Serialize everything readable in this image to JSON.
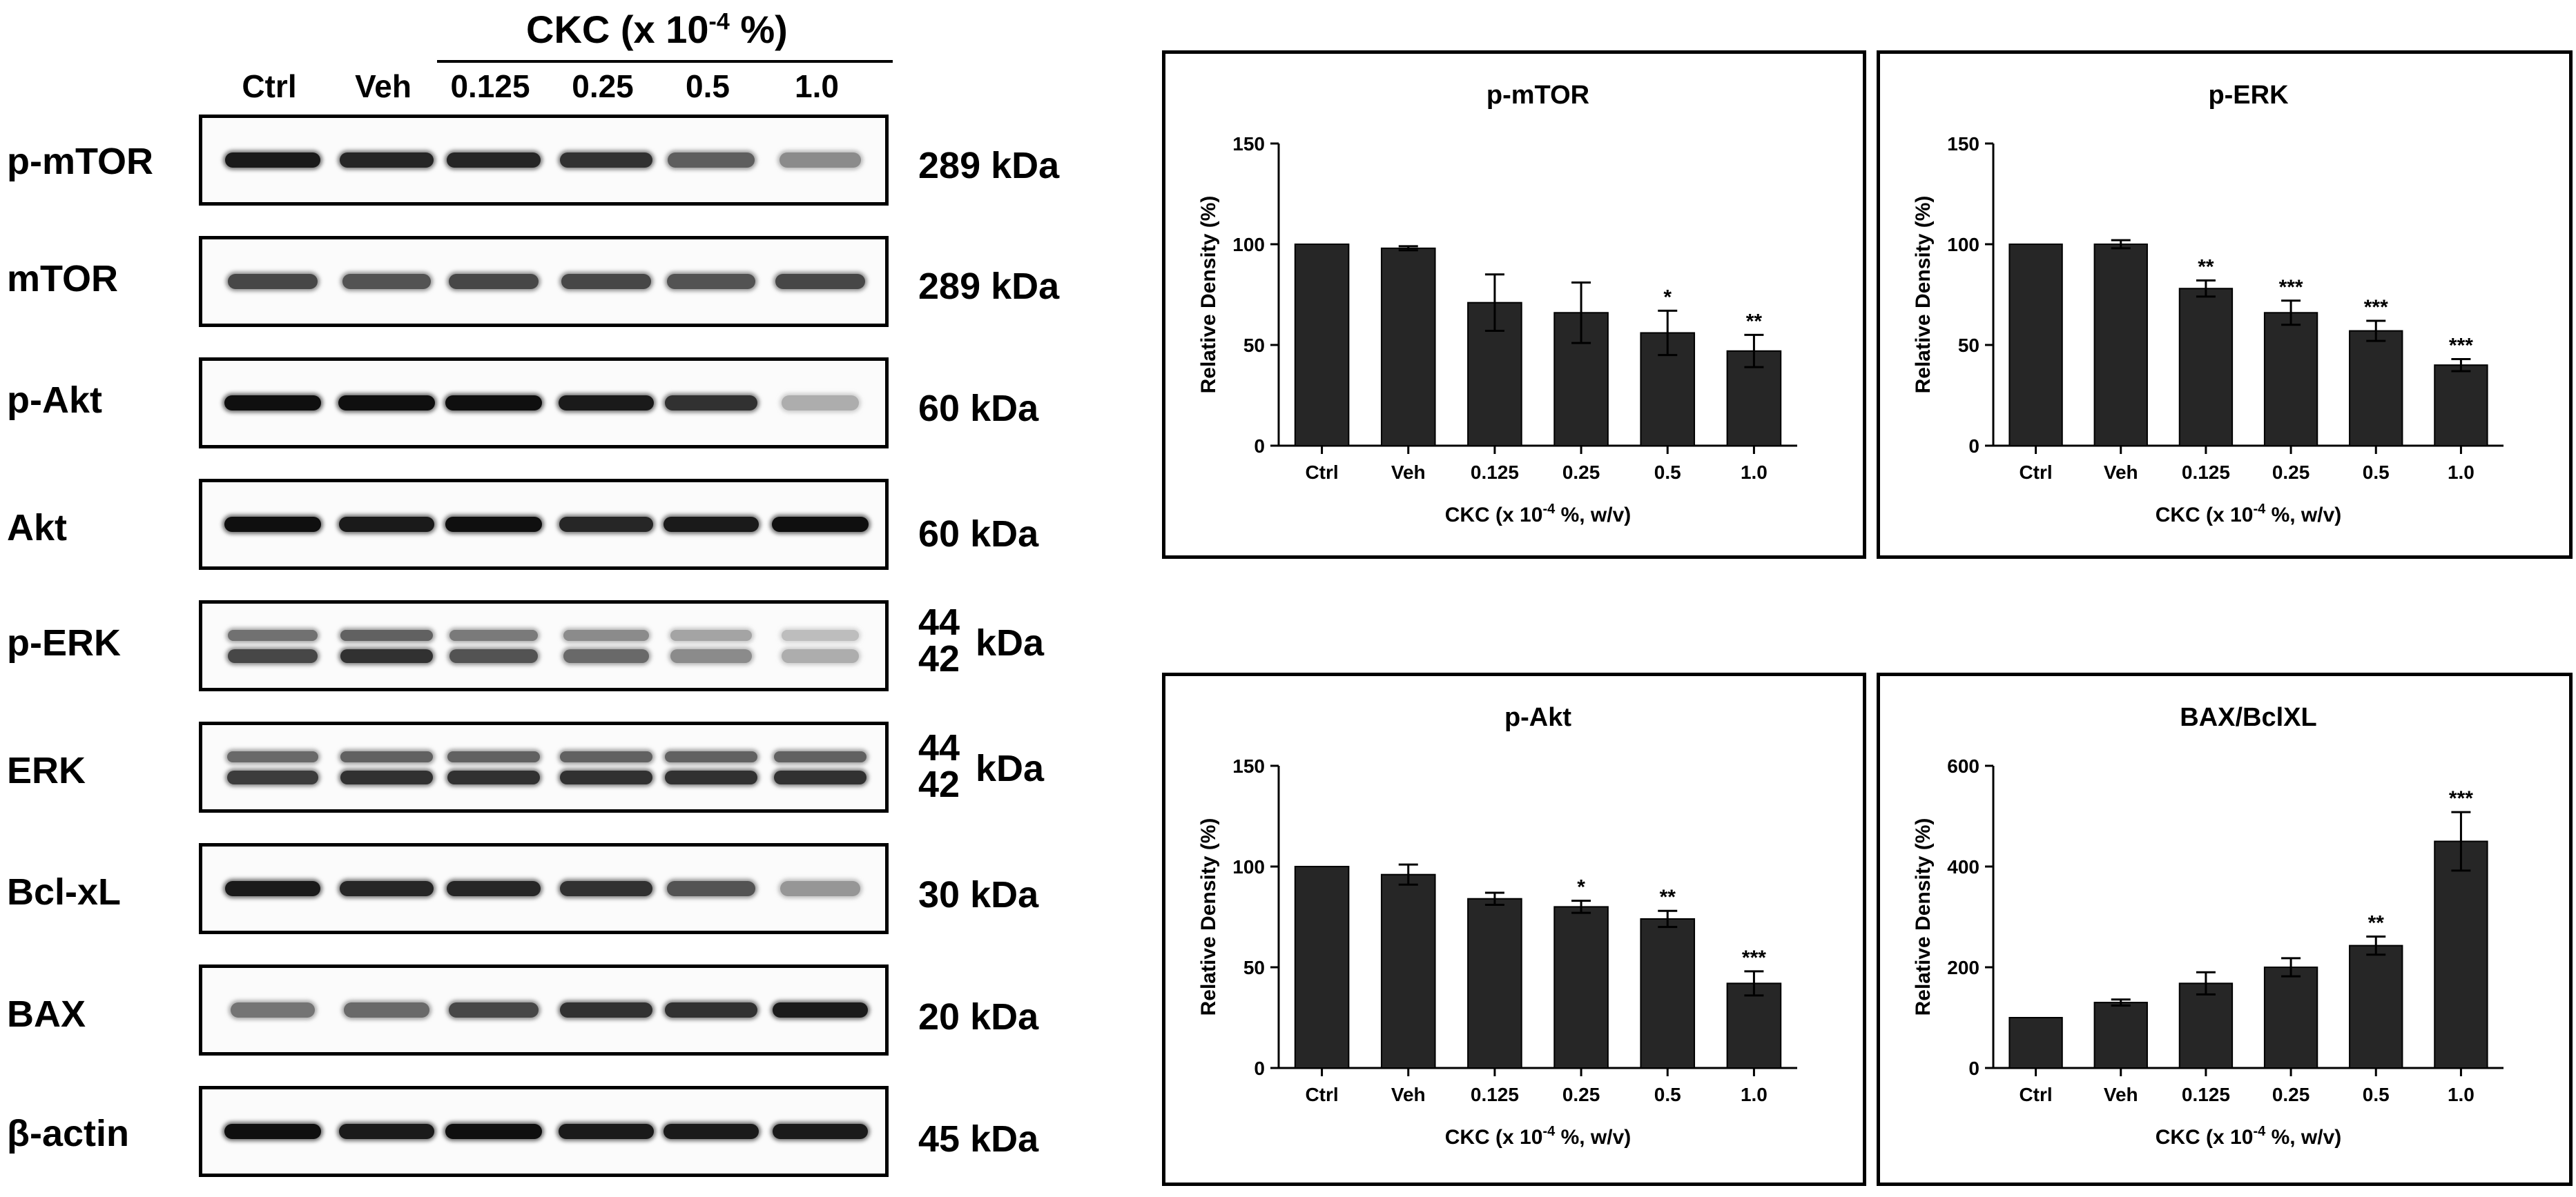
{
  "western_blot": {
    "treatment_header": "CKC (x 10",
    "treatment_exp": "-4",
    "treatment_suffix": " %)",
    "lanes": [
      "Ctrl",
      "Veh",
      "0.125",
      "0.25",
      "0.5",
      "1.0"
    ],
    "rows": [
      {
        "protein": "p-mTOR",
        "kda": "289 kDa",
        "doublet": false,
        "intensity": [
          0.95,
          0.9,
          0.9,
          0.85,
          0.65,
          0.45
        ]
      },
      {
        "protein": "mTOR",
        "kda": "289 kDa",
        "doublet": false,
        "intensity": [
          0.75,
          0.7,
          0.75,
          0.75,
          0.7,
          0.75
        ]
      },
      {
        "protein": "p-Akt",
        "kda": "60 kDa",
        "doublet": false,
        "intensity": [
          1.0,
          1.0,
          1.0,
          0.95,
          0.85,
          0.3
        ]
      },
      {
        "protein": "Akt",
        "kda": "60 kDa",
        "doublet": false,
        "intensity": [
          1.0,
          0.95,
          1.0,
          0.9,
          0.95,
          1.0
        ]
      },
      {
        "protein": "p-ERK",
        "kda_top": "44",
        "kda_bottom": "42",
        "kda_unit": "kDa",
        "doublet": true,
        "intensity": [
          0.75,
          0.85,
          0.7,
          0.6,
          0.45,
          0.3
        ]
      },
      {
        "protein": "ERK",
        "kda_top": "44",
        "kda_bottom": "42",
        "kda_unit": "kDa",
        "doublet": true,
        "intensity": [
          0.8,
          0.85,
          0.85,
          0.85,
          0.85,
          0.85
        ]
      },
      {
        "protein": "Bcl-xL",
        "kda": "30 kDa",
        "doublet": false,
        "intensity": [
          0.95,
          0.9,
          0.9,
          0.85,
          0.7,
          0.4
        ]
      },
      {
        "protein": "BAX",
        "kda": "20 kDa",
        "doublet": false,
        "intensity": [
          0.55,
          0.6,
          0.75,
          0.85,
          0.85,
          0.95
        ]
      },
      {
        "protein": "β-actin",
        "kda": "45 kDa",
        "doublet": false,
        "intensity": [
          1.0,
          0.95,
          1.0,
          0.95,
          0.95,
          0.95
        ]
      }
    ]
  },
  "chart_data": [
    {
      "type": "bar",
      "title": "p-mTOR",
      "categories": [
        "Ctrl",
        "Veh",
        "0.125",
        "0.25",
        "0.5",
        "1.0"
      ],
      "values": [
        100,
        98,
        71,
        66,
        56,
        47
      ],
      "errors": [
        0,
        1,
        14,
        15,
        11,
        8
      ],
      "significance": [
        "",
        "",
        "",
        "",
        "*",
        "**"
      ],
      "ylabel": "Relative Density (%)",
      "xlabel": "CKC (x 10",
      "xlabel_exp": "-4",
      "xlabel_suffix": " %, w/v)",
      "ylim": [
        0,
        150
      ],
      "yticks": [
        0,
        50,
        100,
        150
      ],
      "grid": false,
      "bar_color": "#262626"
    },
    {
      "type": "bar",
      "title": "p-ERK",
      "categories": [
        "Ctrl",
        "Veh",
        "0.125",
        "0.25",
        "0.5",
        "1.0"
      ],
      "values": [
        100,
        100,
        78,
        66,
        57,
        40
      ],
      "errors": [
        0,
        2,
        4,
        6,
        5,
        3
      ],
      "significance": [
        "",
        "",
        "**",
        "***",
        "***",
        "***"
      ],
      "ylabel": "Relative Density (%)",
      "xlabel": "CKC (x 10",
      "xlabel_exp": "-4",
      "xlabel_suffix": " %, w/v)",
      "ylim": [
        0,
        150
      ],
      "yticks": [
        0,
        50,
        100,
        150
      ],
      "grid": false,
      "bar_color": "#262626"
    },
    {
      "type": "bar",
      "title": "p-Akt",
      "categories": [
        "Ctrl",
        "Veh",
        "0.125",
        "0.25",
        "0.5",
        "1.0"
      ],
      "values": [
        100,
        96,
        84,
        80,
        74,
        42
      ],
      "errors": [
        0,
        5,
        3,
        3,
        4,
        6
      ],
      "significance": [
        "",
        "",
        "",
        "*",
        "**",
        "***"
      ],
      "ylabel": "Relative Density (%)",
      "xlabel": "CKC (x 10",
      "xlabel_exp": "-4",
      "xlabel_suffix": " %, w/v)",
      "ylim": [
        0,
        150
      ],
      "yticks": [
        0,
        50,
        100,
        150
      ],
      "grid": false,
      "bar_color": "#262626"
    },
    {
      "type": "bar",
      "title": "BAX/BclXL",
      "categories": [
        "Ctrl",
        "Veh",
        "0.125",
        "0.25",
        "0.5",
        "1.0"
      ],
      "values": [
        100,
        130,
        168,
        200,
        243,
        450
      ],
      "errors": [
        0,
        6,
        22,
        18,
        18,
        58
      ],
      "significance": [
        "",
        "",
        "",
        "",
        "**",
        "***"
      ],
      "ylabel": "Relative Density (%)",
      "xlabel": "CKC (x 10",
      "xlabel_exp": "-4",
      "xlabel_suffix": " %, w/v)",
      "ylim": [
        0,
        600
      ],
      "yticks": [
        0,
        200,
        400,
        600
      ],
      "grid": false,
      "bar_color": "#262626"
    }
  ]
}
